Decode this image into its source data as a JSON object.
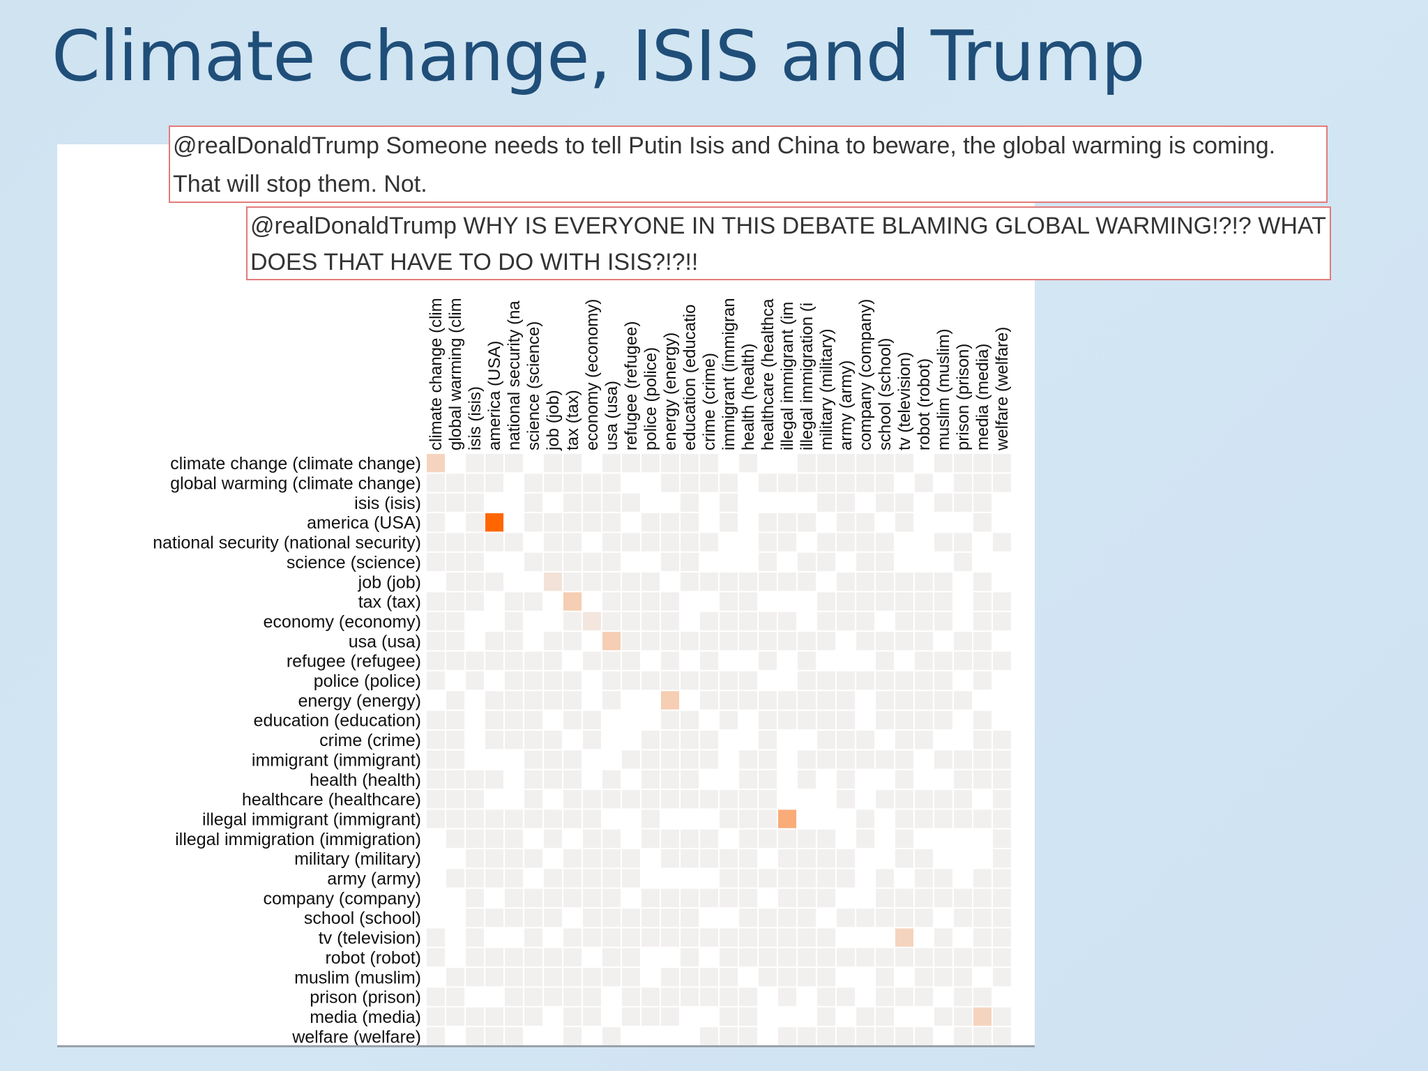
{
  "slide": {
    "title": "Climate change, ISIS and Trump",
    "tweets": [
      "@realDonaldTrump Someone needs to tell Putin Isis and China to beware, the global warming is coming. That will stop them. Not.",
      "@realDonaldTrump WHY IS EVERYONE IN THIS DEBATE BLAMING GLOBAL WARMING!?!? WHAT DOES THAT HAVE TO DO WITH ISIS?!?!!"
    ]
  },
  "chart_data": {
    "type": "heatmap",
    "row_labels": [
      "climate change (climate change)",
      "global warming (climate change)",
      "isis (isis)",
      "america (USA)",
      "national security (national security)",
      "science (science)",
      "job (job)",
      "tax (tax)",
      "economy (economy)",
      "usa (usa)",
      "refugee (refugee)",
      "police (police)",
      "energy (energy)",
      "education (education)",
      "crime (crime)",
      "immigrant (immigrant)",
      "health (health)",
      "healthcare (healthcare)",
      "illegal immigrant (immigrant)",
      "illegal immigration (immigration)",
      "military (military)",
      "army (army)",
      "company (company)",
      "school (school)",
      "tv (television)",
      "robot (robot)",
      "muslim (muslim)",
      "prison (prison)",
      "media (media)",
      "welfare (welfare)"
    ],
    "column_labels": [
      "climate change (clim",
      "global warming (clim",
      "isis (isis)",
      "america (USA)",
      "national security (na",
      "science (science)",
      "job (job)",
      "tax (tax)",
      "economy (economy)",
      "usa (usa)",
      "refugee (refugee)",
      "police (police)",
      "energy (energy)",
      "education (educatio",
      "crime (crime)",
      "immigrant (immigran",
      "health (health)",
      "healthcare (healthca",
      "illegal immigrant (im",
      "illegal immigration (i",
      "military (military)",
      "army (army)",
      "company (company)",
      "school (school)",
      "tv (television)",
      "robot (robot)",
      "muslim (muslim)",
      "prison (prison)",
      "media (media)",
      "welfare (welfare)"
    ],
    "highlighted_cells": [
      {
        "row": "climate change (climate change)",
        "col": "climate change (clim",
        "value": 0.2
      },
      {
        "row": "america (USA)",
        "col": "america (USA)",
        "value": 1.0
      },
      {
        "row": "job (job)",
        "col": "job (job)",
        "value": 0.1
      },
      {
        "row": "tax (tax)",
        "col": "tax (tax)",
        "value": 0.25
      },
      {
        "row": "economy (economy)",
        "col": "economy (economy)",
        "value": 0.07
      },
      {
        "row": "usa (usa)",
        "col": "usa (usa)",
        "value": 0.25
      },
      {
        "row": "energy (energy)",
        "col": "energy (energy)",
        "value": 0.25
      },
      {
        "row": "illegal immigrant (immigrant)",
        "col": "illegal immigrant (im",
        "value": 0.5
      },
      {
        "row": "tv (television)",
        "col": "tv (television)",
        "value": 0.2
      },
      {
        "row": "media (media)",
        "col": "media (media)",
        "value": 0.2
      }
    ],
    "colors": {
      "empty": "#ffffff",
      "low": "#f2f0ef",
      "high": "#ff6600"
    },
    "legend": "none"
  }
}
